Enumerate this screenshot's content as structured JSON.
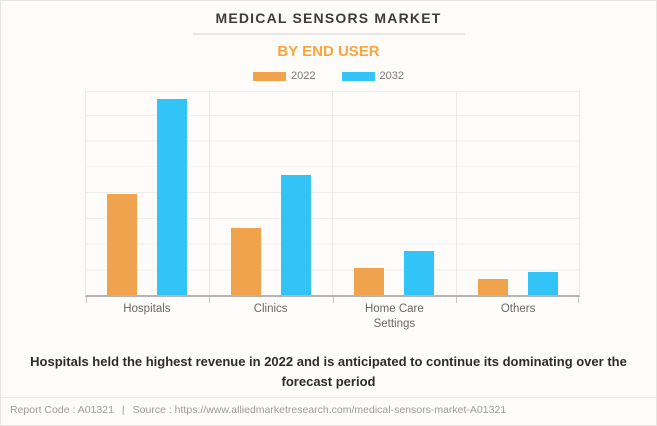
{
  "header": {
    "title": "MEDICAL SENSORS MARKET",
    "subtitle": "BY END USER"
  },
  "chart_data": {
    "type": "bar",
    "categories": [
      "Hospitals",
      "Clinics",
      "Home Care Settings",
      "Others"
    ],
    "series": [
      {
        "name": "2022",
        "color": "#F0A24C",
        "values": [
          49.5,
          33,
          13,
          8
        ]
      },
      {
        "name": "2032",
        "color": "#33C4F7",
        "values": [
          96,
          59,
          21.5,
          11.5
        ]
      }
    ],
    "title": "MEDICAL SENSORS MARKET",
    "subtitle": "BY END USER",
    "xlabel": "",
    "ylabel": "",
    "ylim": [
      0,
      100
    ],
    "y_axis_ticks_visible": false,
    "grid": true,
    "gridline_intervals": 8,
    "legend_position": "top"
  },
  "caption": "Hospitals held the highest revenue in 2022 and is anticipated to continue its dominating over the forecast period",
  "footer": {
    "report_code": "Report Code : A01321",
    "separator": "|",
    "source": "Source : https://www.alliedmarketresearch.com/medical-sensors-market-A01321"
  },
  "colors": {
    "background": "#fdfcfa",
    "title_text": "#3d3d3d",
    "subtitle_orange": "#f9a43c",
    "bar_2022_orange": "#F0A24C",
    "bar_2032_blue": "#33C4F7",
    "axis_line": "#b7b5b2",
    "gridline": "#f0eeeb",
    "label_gray": "#6a6a6a",
    "footer_gray": "#9c9c9c"
  }
}
